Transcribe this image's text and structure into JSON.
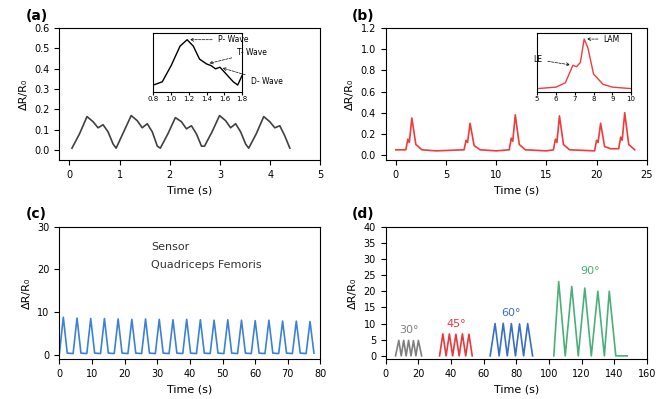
{
  "chart_data": [
    {
      "type": "line",
      "title": "(a)",
      "xlabel": "Time (s)",
      "ylabel": "ΔR/R₀",
      "color": "#404040",
      "xlim": [
        -0.2,
        5
      ],
      "xticks": [
        0,
        1,
        2,
        3,
        4,
        5
      ],
      "ylim": [
        -0.05,
        0.6
      ],
      "yticks": [
        0.0,
        0.1,
        0.2,
        0.3,
        0.4,
        0.5,
        0.6
      ],
      "x": [
        0.05,
        0.2,
        0.35,
        0.47,
        0.57,
        0.67,
        0.77,
        0.87,
        0.93,
        1.08,
        1.23,
        1.35,
        1.45,
        1.55,
        1.65,
        1.75,
        1.81,
        1.96,
        2.11,
        2.23,
        2.33,
        2.43,
        2.53,
        2.63,
        2.69,
        2.84,
        2.99,
        3.11,
        3.21,
        3.31,
        3.41,
        3.51,
        3.57,
        3.72,
        3.87,
        3.99,
        4.09,
        4.19,
        4.29,
        4.39
      ],
      "values": [
        0.01,
        0.08,
        0.165,
        0.14,
        0.11,
        0.125,
        0.09,
        0.03,
        0.01,
        0.09,
        0.17,
        0.145,
        0.11,
        0.13,
        0.09,
        0.02,
        0.01,
        0.08,
        0.16,
        0.14,
        0.105,
        0.12,
        0.08,
        0.02,
        0.02,
        0.09,
        0.17,
        0.145,
        0.11,
        0.13,
        0.09,
        0.03,
        0.01,
        0.08,
        0.165,
        0.14,
        0.11,
        0.12,
        0.07,
        0.01
      ],
      "inset": {
        "type": "line",
        "tick_labels": "x",
        "color": "#000000",
        "xlim": [
          0.8,
          1.8
        ],
        "xticks": [
          0.8,
          1.0,
          1.2,
          1.4,
          1.6,
          1.8
        ],
        "ylim": [
          0.0,
          0.18
        ],
        "x": [
          0.8,
          0.9,
          1.0,
          1.1,
          1.18,
          1.25,
          1.32,
          1.4,
          1.45,
          1.5,
          1.55,
          1.6,
          1.7,
          1.75,
          1.8
        ],
        "values": [
          0.02,
          0.03,
          0.08,
          0.14,
          0.16,
          0.14,
          0.1,
          0.085,
          0.08,
          0.07,
          0.075,
          0.06,
          0.03,
          0.02,
          0.05
        ],
        "annotations": [
          {
            "text": "P- Wave",
            "x": 1.18,
            "y": 0.16
          },
          {
            "text": "T- Wave",
            "x": 1.4,
            "y": 0.085
          },
          {
            "text": "D- Wave",
            "x": 1.55,
            "y": 0.075
          }
        ]
      }
    },
    {
      "type": "line",
      "title": "(b)",
      "xlabel": "Time (s)",
      "ylabel": "ΔR/R₀",
      "color": "#ef3b3b",
      "xlim": [
        -1,
        25
      ],
      "xticks": [
        0,
        5,
        10,
        15,
        20,
        25
      ],
      "ylim": [
        -0.05,
        1.2
      ],
      "yticks": [
        0.0,
        0.2,
        0.4,
        0.6,
        0.8,
        1.0,
        1.2
      ],
      "x": [
        0,
        1.0,
        1.2,
        1.35,
        1.6,
        2.0,
        2.6,
        4.0,
        6.8,
        7.0,
        7.15,
        7.4,
        7.8,
        8.4,
        10,
        11.3,
        11.5,
        11.65,
        11.9,
        12.3,
        12.9,
        15,
        15.7,
        15.9,
        16.05,
        16.3,
        16.7,
        17.3,
        19.8,
        20.0,
        20.15,
        20.4,
        20.8,
        21.4,
        22.2,
        22.4,
        22.55,
        22.8,
        23.2,
        23.8
      ],
      "values": [
        0.05,
        0.05,
        0.15,
        0.12,
        0.35,
        0.1,
        0.05,
        0.04,
        0.05,
        0.14,
        0.12,
        0.3,
        0.09,
        0.05,
        0.04,
        0.05,
        0.16,
        0.13,
        0.38,
        0.1,
        0.05,
        0.04,
        0.05,
        0.15,
        0.12,
        0.37,
        0.1,
        0.05,
        0.04,
        0.14,
        0.12,
        0.3,
        0.08,
        0.06,
        0.06,
        0.17,
        0.14,
        0.4,
        0.1,
        0.05
      ],
      "inset": {
        "type": "line",
        "tick_labels": "x",
        "color": "#ef3b3b",
        "xlim": [
          5,
          10
        ],
        "xticks": [
          5,
          6,
          7,
          8,
          9,
          10
        ],
        "ylim": [
          0.0,
          0.4
        ],
        "x": [
          5,
          6,
          6.5,
          6.9,
          7.1,
          7.3,
          7.5,
          7.7,
          8,
          8.5,
          9,
          10
        ],
        "values": [
          0.02,
          0.03,
          0.06,
          0.18,
          0.17,
          0.2,
          0.36,
          0.3,
          0.12,
          0.05,
          0.03,
          0.02
        ],
        "annotations": [
          {
            "text": "LAM",
            "x": 7.5,
            "y": 0.36
          },
          {
            "text": "LE",
            "x": 6.9,
            "y": 0.18
          }
        ]
      }
    },
    {
      "type": "line",
      "title": "(c)",
      "xlabel": "Time (s)",
      "ylabel": "ΔR/R₀",
      "color": "#3b82d6",
      "xlim": [
        0,
        80
      ],
      "xticks": [
        0,
        10,
        20,
        30,
        40,
        50,
        60,
        70,
        80
      ],
      "ylim": [
        -1,
        30
      ],
      "yticks": [
        0,
        10,
        20,
        30
      ],
      "x": [
        0,
        1.2,
        2.4,
        4.2,
        5.4,
        6.6,
        8.4,
        9.6,
        10.8,
        12.6,
        13.8,
        15.0,
        16.8,
        18.0,
        19.2,
        21.0,
        22.2,
        23.4,
        25.2,
        26.4,
        27.6,
        29.4,
        30.6,
        31.8,
        33.6,
        34.8,
        36.0,
        37.8,
        39.0,
        40.2,
        42.0,
        43.2,
        44.4,
        46.2,
        47.4,
        48.6,
        50.4,
        51.6,
        52.8,
        54.6,
        55.8,
        57.0,
        58.8,
        60.0,
        61.2,
        63.0,
        64.2,
        65.4,
        67.2,
        68.4,
        69.6,
        71.4,
        72.6,
        73.8,
        75.6,
        76.8,
        78.0
      ],
      "values": [
        0.3,
        8.8,
        0.4,
        0.3,
        8.6,
        0.4,
        0.3,
        8.5,
        0.4,
        0.3,
        8.5,
        0.4,
        0.3,
        8.4,
        0.4,
        0.3,
        8.3,
        0.4,
        0.3,
        8.4,
        0.4,
        0.3,
        8.3,
        0.4,
        0.3,
        8.2,
        0.4,
        0.3,
        8.3,
        0.4,
        0.3,
        8.2,
        0.4,
        0.3,
        8.1,
        0.4,
        0.3,
        8.2,
        0.4,
        0.3,
        8.1,
        0.4,
        0.3,
        8.0,
        0.4,
        0.3,
        8.1,
        0.4,
        0.3,
        7.9,
        0.4,
        0.3,
        7.9,
        0.4,
        0.3,
        7.8,
        0.4
      ],
      "annotations": [
        {
          "text": "Sensor"
        },
        {
          "text": "Quadriceps Femoris"
        }
      ]
    },
    {
      "type": "line",
      "title": "(d)",
      "xlabel": "Time (s)",
      "ylabel": "ΔR/R₀",
      "xlim": [
        0,
        160
      ],
      "xticks": [
        0,
        20,
        40,
        60,
        80,
        100,
        120,
        140,
        160
      ],
      "ylim": [
        -1,
        40
      ],
      "yticks": [
        0,
        5,
        10,
        15,
        20,
        25,
        30,
        35,
        40
      ],
      "series": [
        {
          "name": "30°",
          "color": "#7f7f7f",
          "x": [
            6,
            8,
            9.5,
            11,
            12.5,
            14,
            15.5,
            17,
            18.5,
            20,
            22
          ],
          "values": [
            0,
            4.8,
            0,
            4.8,
            0,
            4.8,
            0,
            4.7,
            0,
            4.8,
            0
          ]
        },
        {
          "name": "45°",
          "color": "#e8383d",
          "x": [
            33,
            35,
            37,
            39,
            41,
            43,
            45,
            47,
            49,
            51,
            53
          ],
          "values": [
            0,
            6.8,
            0,
            6.8,
            0,
            6.7,
            0,
            6.8,
            0,
            6.7,
            0
          ]
        },
        {
          "name": "60°",
          "color": "#3a6fc4",
          "x": [
            64,
            67,
            69.5,
            72,
            74.5,
            77,
            79.5,
            82,
            84.5,
            87,
            90
          ],
          "values": [
            0,
            10,
            0,
            10.1,
            0,
            10,
            0,
            9.9,
            0,
            10,
            0
          ]
        },
        {
          "name": "90°",
          "color": "#4caf7a",
          "x": [
            103,
            106,
            110,
            114,
            118,
            122,
            126,
            130,
            134,
            137,
            141,
            148
          ],
          "values": [
            0,
            23,
            0,
            21.5,
            0,
            21,
            0,
            20,
            0,
            20,
            0,
            0
          ]
        }
      ]
    }
  ]
}
